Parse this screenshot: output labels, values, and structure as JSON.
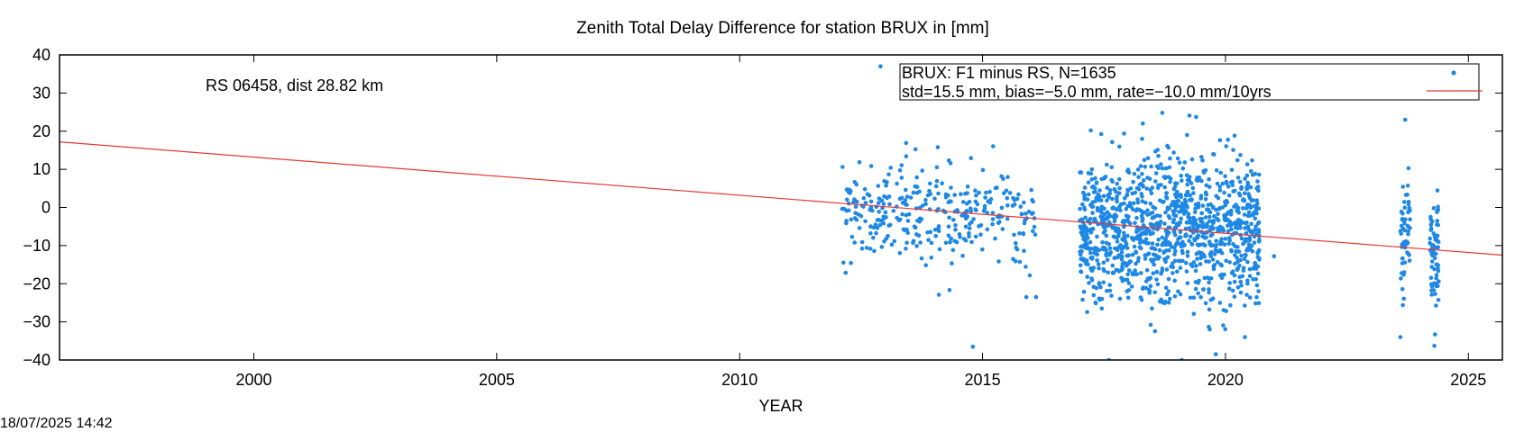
{
  "chart_data": {
    "type": "scatter",
    "title": "Zenith Total Delay Difference for station BRUX in [mm]",
    "xlabel": "YEAR",
    "ylabel": "",
    "xlim": [
      1996.0,
      2025.7
    ],
    "ylim": [
      -40,
      40
    ],
    "x_ticks": [
      2000,
      2005,
      2010,
      2015,
      2020,
      2025
    ],
    "y_ticks": [
      -40,
      -30,
      -20,
      -10,
      0,
      10,
      20,
      30,
      40
    ],
    "grid": false,
    "legend_position": "top-right",
    "annotation": "RS 06458, dist 28.82 km",
    "series": [
      {
        "name": "BRUX: F1 minus RS, N=1635",
        "kind": "points",
        "color": "#1e88e5",
        "clusters": [
          {
            "x_range": [
              2012.1,
              2016.1
            ],
            "y_center": -1.5,
            "y_spread": 6.5,
            "count": 330
          },
          {
            "x_range": [
              2017.0,
              2020.7
            ],
            "y_center": -5.5,
            "y_spread": 9.5,
            "count": 1180
          },
          {
            "x_range": [
              2023.6,
              2023.8
            ],
            "y_center": -8.0,
            "y_spread": 7.5,
            "count": 55
          },
          {
            "x_range": [
              2024.2,
              2024.4
            ],
            "y_center": -11.5,
            "y_spread": 7.5,
            "count": 70
          }
        ],
        "outliers": [
          [
            2012.9,
            37.0
          ],
          [
            2014.8,
            -36.5
          ],
          [
            2017.6,
            -40.0
          ],
          [
            2018.3,
            22.0
          ],
          [
            2018.7,
            24.8
          ],
          [
            2019.1,
            -40.0
          ],
          [
            2019.8,
            -38.5
          ],
          [
            2020.4,
            -34.0
          ],
          [
            2021.0,
            -12.8
          ],
          [
            2023.7,
            23.0
          ],
          [
            2023.6,
            -34.0
          ],
          [
            2024.3,
            -36.3
          ],
          [
            2015.9,
            -23.5
          ],
          [
            2016.1,
            -23.5
          ]
        ]
      },
      {
        "name": "std=15.5 mm, bias=−5.0 mm, rate=−10.0 mm/10yrs",
        "kind": "line",
        "color": "#e53935",
        "points": [
          [
            1996.0,
            17.2
          ],
          [
            2025.7,
            -12.5
          ]
        ]
      }
    ]
  },
  "footer": {
    "timestamp": "18/07/2025 14:42"
  }
}
